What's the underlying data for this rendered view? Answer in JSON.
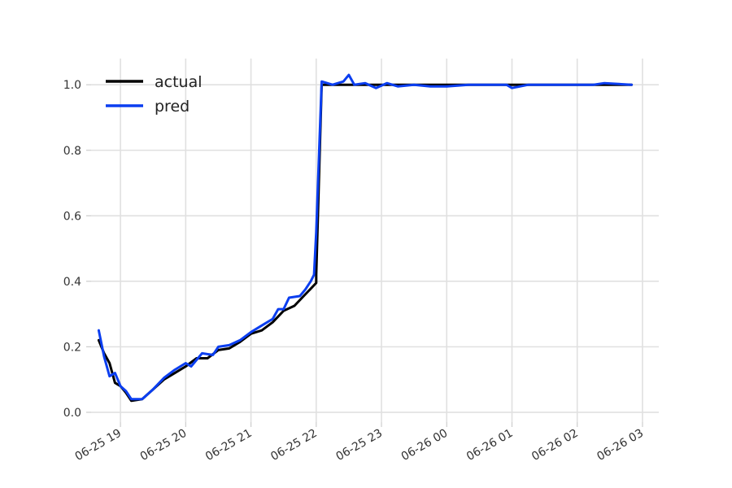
{
  "chart_data": {
    "type": "line",
    "title": "",
    "xlabel": "",
    "ylabel": "",
    "xlim": [
      "2024-06-25 18:33",
      "2024-06-26 03:15"
    ],
    "ylim": [
      -0.03,
      1.08
    ],
    "x_ticks": [
      "06-25 19",
      "06-25 20",
      "06-25 21",
      "06-25 22",
      "06-25 23",
      "06-26 00",
      "06-26 01",
      "06-26 02",
      "06-26 03"
    ],
    "y_ticks": [
      "0.0",
      "0.2",
      "0.4",
      "0.6",
      "0.8",
      "1.0"
    ],
    "grid": true,
    "legend_position": "top-left",
    "series": [
      {
        "name": "actual",
        "color": "#000000",
        "points": [
          [
            "2024-06-25 18:40",
            0.22
          ],
          [
            "2024-06-25 18:45",
            0.18
          ],
          [
            "2024-06-25 18:50",
            0.15
          ],
          [
            "2024-06-25 18:55",
            0.09
          ],
          [
            "2024-06-25 19:00",
            0.08
          ],
          [
            "2024-06-25 19:05",
            0.06
          ],
          [
            "2024-06-25 19:10",
            0.035
          ],
          [
            "2024-06-25 19:20",
            0.04
          ],
          [
            "2024-06-25 19:30",
            0.07
          ],
          [
            "2024-06-25 19:40",
            0.1
          ],
          [
            "2024-06-25 19:50",
            0.12
          ],
          [
            "2024-06-25 20:00",
            0.14
          ],
          [
            "2024-06-25 20:10",
            0.165
          ],
          [
            "2024-06-25 20:20",
            0.165
          ],
          [
            "2024-06-25 20:30",
            0.19
          ],
          [
            "2024-06-25 20:40",
            0.195
          ],
          [
            "2024-06-25 20:50",
            0.215
          ],
          [
            "2024-06-25 21:00",
            0.24
          ],
          [
            "2024-06-25 21:10",
            0.25
          ],
          [
            "2024-06-25 21:20",
            0.275
          ],
          [
            "2024-06-25 21:30",
            0.31
          ],
          [
            "2024-06-25 21:40",
            0.325
          ],
          [
            "2024-06-25 21:50",
            0.36
          ],
          [
            "2024-06-25 22:00",
            0.395
          ],
          [
            "2024-06-25 22:00",
            0.42
          ],
          [
            "2024-06-25 22:05",
            1.0
          ],
          [
            "2024-06-25 23:00",
            1.0
          ],
          [
            "2024-06-26 00:00",
            1.0
          ],
          [
            "2024-06-26 01:00",
            1.0
          ],
          [
            "2024-06-26 02:00",
            1.0
          ],
          [
            "2024-06-26 02:50",
            1.0
          ]
        ]
      },
      {
        "name": "pred",
        "color": "#0b3ef0",
        "points": [
          [
            "2024-06-25 18:40",
            0.25
          ],
          [
            "2024-06-25 18:45",
            0.17
          ],
          [
            "2024-06-25 18:50",
            0.11
          ],
          [
            "2024-06-25 18:55",
            0.12
          ],
          [
            "2024-06-25 19:00",
            0.08
          ],
          [
            "2024-06-25 19:05",
            0.065
          ],
          [
            "2024-06-25 19:10",
            0.04
          ],
          [
            "2024-06-25 19:20",
            0.04
          ],
          [
            "2024-06-25 19:30",
            0.07
          ],
          [
            "2024-06-25 19:40",
            0.105
          ],
          [
            "2024-06-25 19:50",
            0.13
          ],
          [
            "2024-06-25 20:00",
            0.15
          ],
          [
            "2024-06-25 20:05",
            0.14
          ],
          [
            "2024-06-25 20:15",
            0.18
          ],
          [
            "2024-06-25 20:25",
            0.175
          ],
          [
            "2024-06-25 20:30",
            0.2
          ],
          [
            "2024-06-25 20:40",
            0.205
          ],
          [
            "2024-06-25 20:50",
            0.22
          ],
          [
            "2024-06-25 21:00",
            0.245
          ],
          [
            "2024-06-25 21:10",
            0.265
          ],
          [
            "2024-06-25 21:20",
            0.285
          ],
          [
            "2024-06-25 21:25",
            0.315
          ],
          [
            "2024-06-25 21:30",
            0.315
          ],
          [
            "2024-06-25 21:35",
            0.35
          ],
          [
            "2024-06-25 21:45",
            0.355
          ],
          [
            "2024-06-25 21:50",
            0.375
          ],
          [
            "2024-06-25 21:55",
            0.4
          ],
          [
            "2024-06-25 21:58",
            0.42
          ],
          [
            "2024-06-25 22:00",
            0.55
          ],
          [
            "2024-06-25 22:05",
            1.01
          ],
          [
            "2024-06-25 22:15",
            1.0
          ],
          [
            "2024-06-25 22:25",
            1.01
          ],
          [
            "2024-06-25 22:30",
            1.03
          ],
          [
            "2024-06-25 22:35",
            1.0
          ],
          [
            "2024-06-25 22:45",
            1.005
          ],
          [
            "2024-06-25 22:55",
            0.99
          ],
          [
            "2024-06-25 23:05",
            1.005
          ],
          [
            "2024-06-25 23:15",
            0.995
          ],
          [
            "2024-06-25 23:30",
            1.0
          ],
          [
            "2024-06-25 23:45",
            0.995
          ],
          [
            "2024-06-26 00:00",
            0.995
          ],
          [
            "2024-06-26 00:20",
            1.0
          ],
          [
            "2024-06-26 00:40",
            1.0
          ],
          [
            "2024-06-26 00:55",
            1.0
          ],
          [
            "2024-06-26 01:00",
            0.99
          ],
          [
            "2024-06-26 01:15",
            1.0
          ],
          [
            "2024-06-26 01:40",
            1.0
          ],
          [
            "2024-06-26 02:00",
            1.0
          ],
          [
            "2024-06-26 02:15",
            1.0
          ],
          [
            "2024-06-26 02:25",
            1.005
          ],
          [
            "2024-06-26 02:50",
            1.0
          ]
        ]
      }
    ]
  }
}
